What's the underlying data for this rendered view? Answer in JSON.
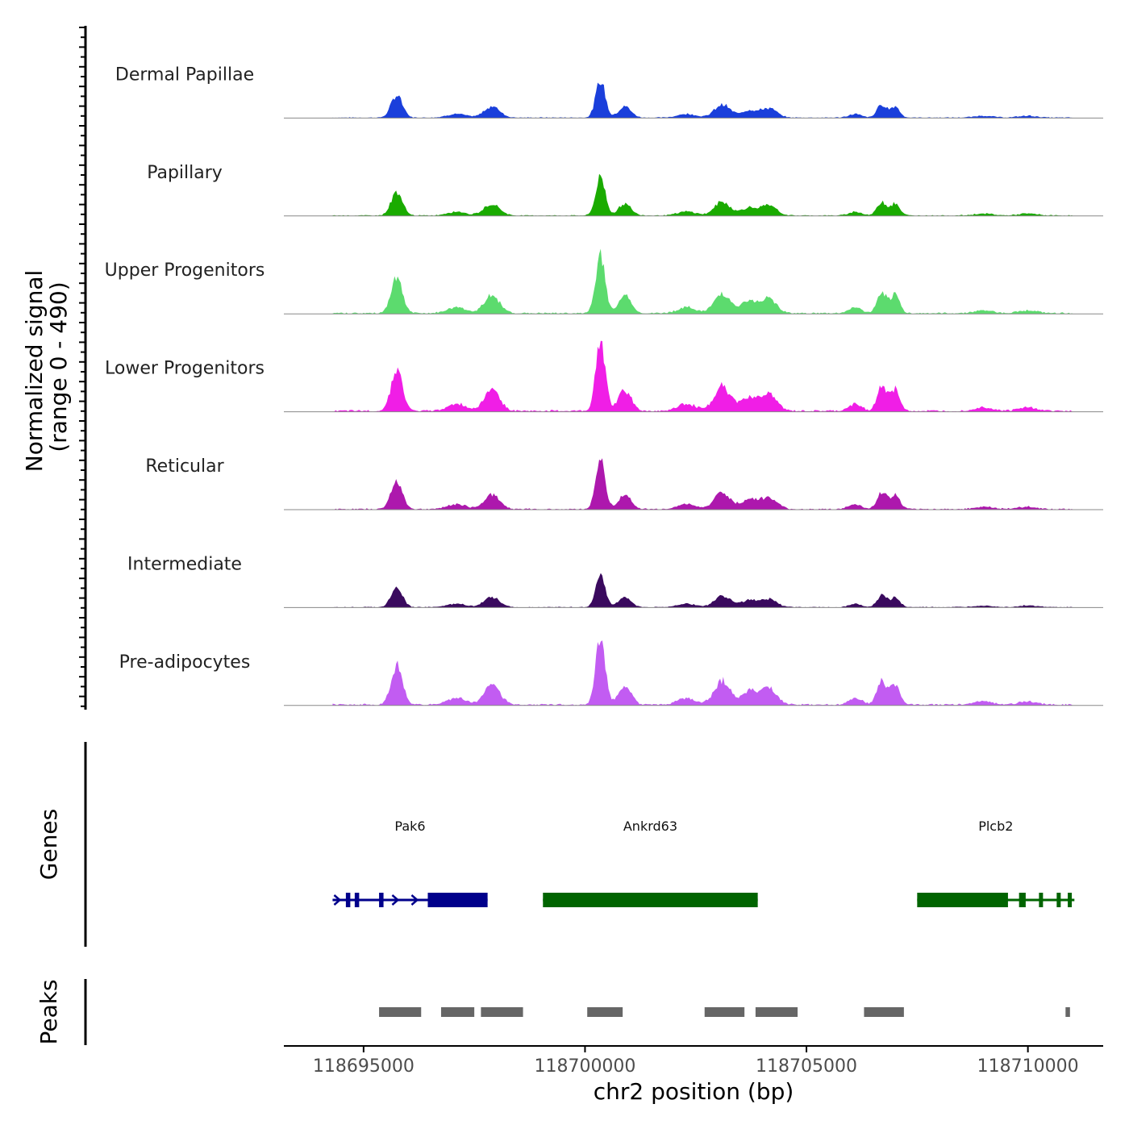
{
  "chart_data": {
    "type": "area",
    "title": "",
    "chromosome": "chr2",
    "xlabel": "chr2 position (bp)",
    "ylabel_line1": "Normalized signal",
    "ylabel_line2": "(range 0 - 490)",
    "ylim": [
      0,
      490
    ],
    "xlim": [
      118693200,
      118711700
    ],
    "x_ticks": [
      118695000,
      118700000,
      118705000,
      118710000
    ],
    "x_tick_labels": [
      "118695000",
      "118700000",
      "118705000",
      "118710000"
    ],
    "tracks": [
      {
        "name": "Dermal Papillae",
        "color": "#1a3fdb",
        "scale": 1.0
      },
      {
        "name": "Papillary",
        "color": "#1aab00",
        "scale": 1.05
      },
      {
        "name": "Upper Progenitors",
        "color": "#5cdb6e",
        "scale": 1.55
      },
      {
        "name": "Lower Progenitors",
        "color": "#f01ee6",
        "scale": 1.9
      },
      {
        "name": "Reticular",
        "color": "#ad18ad",
        "scale": 1.3
      },
      {
        "name": "Intermediate",
        "color": "#3a0a5e",
        "scale": 0.9
      },
      {
        "name": "Pre-adipocytes",
        "color": "#c25cf2",
        "scale": 1.8
      }
    ],
    "signal_peaks": [
      {
        "center": 118695750,
        "width": 180,
        "height": 0.6
      },
      {
        "center": 118697100,
        "width": 300,
        "height": 0.1
      },
      {
        "center": 118697900,
        "width": 250,
        "height": 0.3
      },
      {
        "center": 118700350,
        "width": 150,
        "height": 1.0
      },
      {
        "center": 118700900,
        "width": 200,
        "height": 0.3
      },
      {
        "center": 118702300,
        "width": 300,
        "height": 0.1
      },
      {
        "center": 118703100,
        "width": 250,
        "height": 0.35
      },
      {
        "center": 118703700,
        "width": 250,
        "height": 0.2
      },
      {
        "center": 118704150,
        "width": 250,
        "height": 0.25
      },
      {
        "center": 118706100,
        "width": 200,
        "height": 0.1
      },
      {
        "center": 118706700,
        "width": 150,
        "height": 0.35
      },
      {
        "center": 118707000,
        "width": 150,
        "height": 0.3
      },
      {
        "center": 118709000,
        "width": 300,
        "height": 0.05
      },
      {
        "center": 118710000,
        "width": 300,
        "height": 0.05
      }
    ],
    "genes_panel_label": "Genes",
    "genes": [
      {
        "name": "Pak6",
        "start": 118694300,
        "end": 118697800,
        "strand": "+",
        "color": "#00008b",
        "blocks": [
          [
            118694600,
            118694700
          ],
          [
            118694800,
            118694900
          ],
          [
            118695350,
            118695450
          ],
          [
            118696450,
            118697800
          ]
        ]
      },
      {
        "name": "Ankrd63",
        "start": 118699050,
        "end": 118703900,
        "strand": "+",
        "color": "#006400",
        "blocks": [
          [
            118699050,
            118703900
          ]
        ]
      },
      {
        "name": "Plcb2",
        "start": 118707500,
        "end": 118711050,
        "strand": "-",
        "color": "#006400",
        "blocks": [
          [
            118707500,
            118709550
          ],
          [
            118709800,
            118709950
          ],
          [
            118710250,
            118710300
          ],
          [
            118710650,
            118710700
          ],
          [
            118710900,
            118710950
          ]
        ]
      }
    ],
    "peaks_panel_label": "Peaks",
    "peaks": [
      [
        118695350,
        118696300
      ],
      [
        118696750,
        118697500
      ],
      [
        118697650,
        118698600
      ],
      [
        118700050,
        118700850
      ],
      [
        118702700,
        118703600
      ],
      [
        118703850,
        118704800
      ],
      [
        118706300,
        118707200
      ],
      [
        118710850,
        118710950
      ]
    ]
  }
}
